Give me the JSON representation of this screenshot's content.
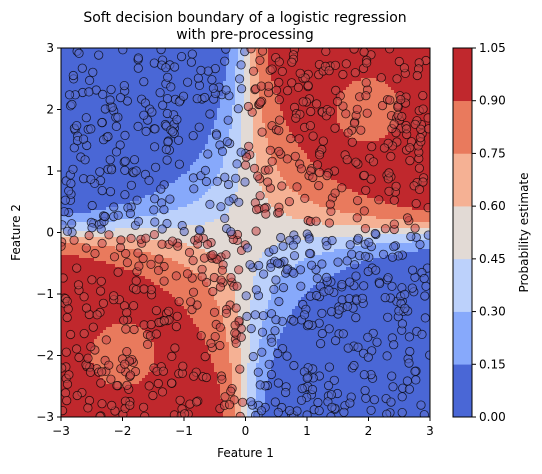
{
  "chart_data": {
    "type": "heatmap",
    "title_lines": [
      "Soft decision boundary of a logistic regression",
      "with pre-processing"
    ],
    "xlabel": "Feature 1",
    "ylabel": "Feature 2",
    "xlim": [
      -3,
      3
    ],
    "ylim": [
      -3,
      3
    ],
    "x_ticks": [
      -3,
      -2,
      -1,
      0,
      1,
      2,
      3
    ],
    "y_ticks": [
      -3,
      -2,
      -1,
      0,
      1,
      2,
      3
    ],
    "x_tick_labels": [
      "−3",
      "−2",
      "−1",
      "0",
      "1",
      "2",
      "3"
    ],
    "y_tick_labels": [
      "−3",
      "−2",
      "−1",
      "0",
      "1",
      "2",
      "3"
    ],
    "colorbar": {
      "label": "Probability estimate",
      "levels": [
        0.0,
        0.15,
        0.3,
        0.45,
        0.6,
        0.75,
        0.9,
        1.05
      ],
      "level_labels": [
        "0.00",
        "0.15",
        "0.30",
        "0.45",
        "0.60",
        "0.75",
        "0.90",
        "1.05"
      ],
      "colors": [
        "#4a67d6",
        "#87a9fb",
        "#bcd1fb",
        "#e2dad5",
        "#f5b194",
        "#e97a5d",
        "#c0282d"
      ]
    },
    "scatter": {
      "class_colors": [
        "#5b6fd0",
        "#c94a4a"
      ],
      "count_per_class": 500,
      "marker": "circle"
    }
  }
}
